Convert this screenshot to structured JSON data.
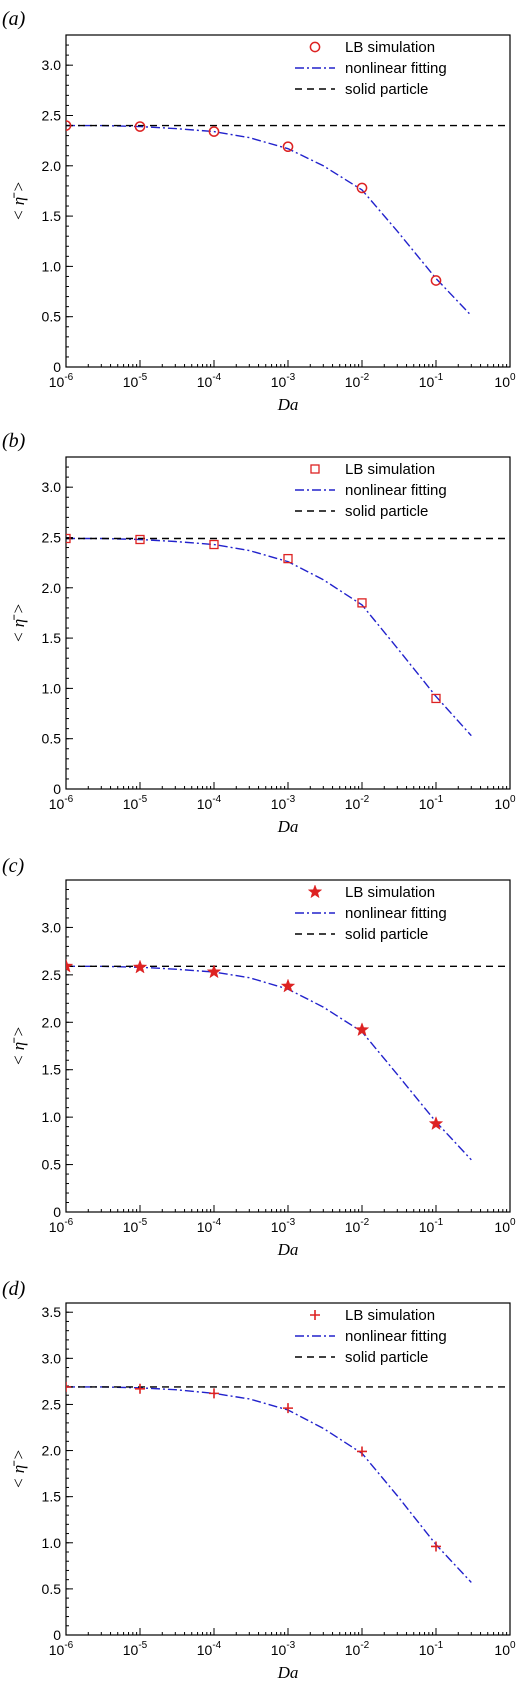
{
  "chart_data": [
    {
      "type": "line",
      "panel_label": "(a)",
      "xlabel": "Da",
      "ylabel": "< η̄ >",
      "x_scale": "log",
      "xlim": [
        1e-06,
        1
      ],
      "ylim": [
        0,
        3.3
      ],
      "y_ticks": [
        "0",
        "0.5",
        "1.0",
        "1.5",
        "2.0",
        "2.5",
        "3.0"
      ],
      "y_tick_values": [
        0,
        0.5,
        1.0,
        1.5,
        2.0,
        2.5,
        3.0
      ],
      "x_tick_bases": [
        "10",
        "10",
        "10",
        "10",
        "10",
        "10",
        "10"
      ],
      "x_tick_exps": [
        "-6",
        "-5",
        "-4",
        "-3",
        "-2",
        "-1",
        "0"
      ],
      "x_tick_values": [
        1e-06,
        1e-05,
        0.0001,
        0.001,
        0.01,
        0.1,
        1
      ],
      "legend": "top-right",
      "grid": false,
      "series": [
        {
          "name": "LB simulation",
          "kind": "scatter",
          "marker": "circle",
          "color": "#dd2222",
          "x": [
            1e-06,
            1e-05,
            0.0001,
            0.001,
            0.01,
            0.1
          ],
          "y": [
            2.4,
            2.39,
            2.34,
            2.19,
            1.78,
            0.86
          ]
        },
        {
          "name": "nonlinear fitting",
          "kind": "line",
          "dash": "dash-dot",
          "color": "#2222cc",
          "x": [
            1e-06,
            3e-06,
            1e-05,
            3e-05,
            0.0001,
            0.0003,
            0.001,
            0.003,
            0.01,
            0.03,
            0.1,
            0.3
          ],
          "y": [
            2.4,
            2.4,
            2.39,
            2.37,
            2.34,
            2.28,
            2.17,
            2.0,
            1.76,
            1.35,
            0.88,
            0.51
          ]
        },
        {
          "name": "solid particle",
          "kind": "line",
          "dash": "dash",
          "color": "#000000",
          "x": [
            1e-06,
            1
          ],
          "y": [
            2.4,
            2.4
          ]
        }
      ]
    },
    {
      "type": "line",
      "panel_label": "(b)",
      "xlabel": "Da",
      "ylabel": "< η̄ >",
      "x_scale": "log",
      "xlim": [
        1e-06,
        1
      ],
      "ylim": [
        0,
        3.3
      ],
      "y_ticks": [
        "0",
        "0.5",
        "1.0",
        "1.5",
        "2.0",
        "2.5",
        "3.0"
      ],
      "y_tick_values": [
        0,
        0.5,
        1.0,
        1.5,
        2.0,
        2.5,
        3.0
      ],
      "x_tick_bases": [
        "10",
        "10",
        "10",
        "10",
        "10",
        "10",
        "10"
      ],
      "x_tick_exps": [
        "-6",
        "-5",
        "-4",
        "-3",
        "-2",
        "-1",
        "0"
      ],
      "x_tick_values": [
        1e-06,
        1e-05,
        0.0001,
        0.001,
        0.01,
        0.1,
        1
      ],
      "legend": "top-right",
      "grid": false,
      "series": [
        {
          "name": "LB simulation",
          "kind": "scatter",
          "marker": "square",
          "color": "#dd2222",
          "x": [
            1e-06,
            1e-05,
            0.0001,
            0.001,
            0.01,
            0.1
          ],
          "y": [
            2.49,
            2.48,
            2.43,
            2.29,
            1.85,
            0.9
          ]
        },
        {
          "name": "nonlinear fitting",
          "kind": "line",
          "dash": "dash-dot",
          "color": "#2222cc",
          "x": [
            1e-06,
            3e-06,
            1e-05,
            3e-05,
            0.0001,
            0.0003,
            0.001,
            0.003,
            0.01,
            0.03,
            0.1,
            0.3
          ],
          "y": [
            2.49,
            2.49,
            2.48,
            2.46,
            2.43,
            2.37,
            2.26,
            2.08,
            1.83,
            1.4,
            0.92,
            0.53
          ]
        },
        {
          "name": "solid particle",
          "kind": "line",
          "dash": "dash",
          "color": "#000000",
          "x": [
            1e-06,
            1
          ],
          "y": [
            2.49,
            2.49
          ]
        }
      ]
    },
    {
      "type": "line",
      "panel_label": "(c)",
      "xlabel": "Da",
      "ylabel": "< η̄ >",
      "x_scale": "log",
      "xlim": [
        1e-06,
        1
      ],
      "ylim": [
        0,
        3.5
      ],
      "y_ticks": [
        "0",
        "0.5",
        "1.0",
        "1.5",
        "2.0",
        "2.5",
        "3.0"
      ],
      "y_tick_values": [
        0,
        0.5,
        1.0,
        1.5,
        2.0,
        2.5,
        3.0
      ],
      "x_tick_bases": [
        "10",
        "10",
        "10",
        "10",
        "10",
        "10",
        "10"
      ],
      "x_tick_exps": [
        "-6",
        "-5",
        "-4",
        "-3",
        "-2",
        "-1",
        "0"
      ],
      "x_tick_values": [
        1e-06,
        1e-05,
        0.0001,
        0.001,
        0.01,
        0.1,
        1
      ],
      "legend": "top-right",
      "grid": false,
      "series": [
        {
          "name": "LB simulation",
          "kind": "scatter",
          "marker": "star",
          "color": "#dd2222",
          "x": [
            1e-06,
            1e-05,
            0.0001,
            0.001,
            0.01,
            0.1
          ],
          "y": [
            2.59,
            2.58,
            2.53,
            2.38,
            1.92,
            0.93
          ]
        },
        {
          "name": "nonlinear fitting",
          "kind": "line",
          "dash": "dash-dot",
          "color": "#2222cc",
          "x": [
            1e-06,
            3e-06,
            1e-05,
            3e-05,
            0.0001,
            0.0003,
            0.001,
            0.003,
            0.01,
            0.03,
            0.1,
            0.3
          ],
          "y": [
            2.59,
            2.59,
            2.58,
            2.56,
            2.53,
            2.47,
            2.35,
            2.16,
            1.9,
            1.45,
            0.95,
            0.55
          ]
        },
        {
          "name": "solid particle",
          "kind": "line",
          "dash": "dash",
          "color": "#000000",
          "x": [
            1e-06,
            1
          ],
          "y": [
            2.59,
            2.59
          ]
        }
      ]
    },
    {
      "type": "line",
      "panel_label": "(d)",
      "xlabel": "Da",
      "ylabel": "< η̄ >",
      "x_scale": "log",
      "xlim": [
        1e-06,
        1
      ],
      "ylim": [
        0,
        3.6
      ],
      "y_ticks": [
        "0",
        "0.5",
        "1.0",
        "1.5",
        "2.0",
        "2.5",
        "3.0",
        "3.5"
      ],
      "y_tick_values": [
        0,
        0.5,
        1.0,
        1.5,
        2.0,
        2.5,
        3.0,
        3.5
      ],
      "x_tick_bases": [
        "10",
        "10",
        "10",
        "10",
        "10",
        "10",
        "10"
      ],
      "x_tick_exps": [
        "-6",
        "-5",
        "-4",
        "-3",
        "-2",
        "-1",
        "0"
      ],
      "x_tick_values": [
        1e-06,
        1e-05,
        0.0001,
        0.001,
        0.01,
        0.1,
        1
      ],
      "legend": "top-right",
      "grid": false,
      "series": [
        {
          "name": "LB simulation",
          "kind": "scatter",
          "marker": "plus",
          "color": "#dd2222",
          "x": [
            1e-06,
            1e-05,
            0.0001,
            0.001,
            0.01,
            0.1
          ],
          "y": [
            2.69,
            2.67,
            2.62,
            2.46,
            1.99,
            0.96
          ]
        },
        {
          "name": "nonlinear fitting",
          "kind": "line",
          "dash": "dash-dot",
          "color": "#2222cc",
          "x": [
            1e-06,
            3e-06,
            1e-05,
            3e-05,
            0.0001,
            0.0003,
            0.001,
            0.003,
            0.01,
            0.03,
            0.1,
            0.3
          ],
          "y": [
            2.69,
            2.69,
            2.68,
            2.66,
            2.62,
            2.56,
            2.44,
            2.24,
            1.97,
            1.51,
            0.98,
            0.57
          ]
        },
        {
          "name": "solid particle",
          "kind": "line",
          "dash": "dash",
          "color": "#000000",
          "x": [
            1e-06,
            1
          ],
          "y": [
            2.69,
            2.69
          ]
        }
      ]
    }
  ]
}
